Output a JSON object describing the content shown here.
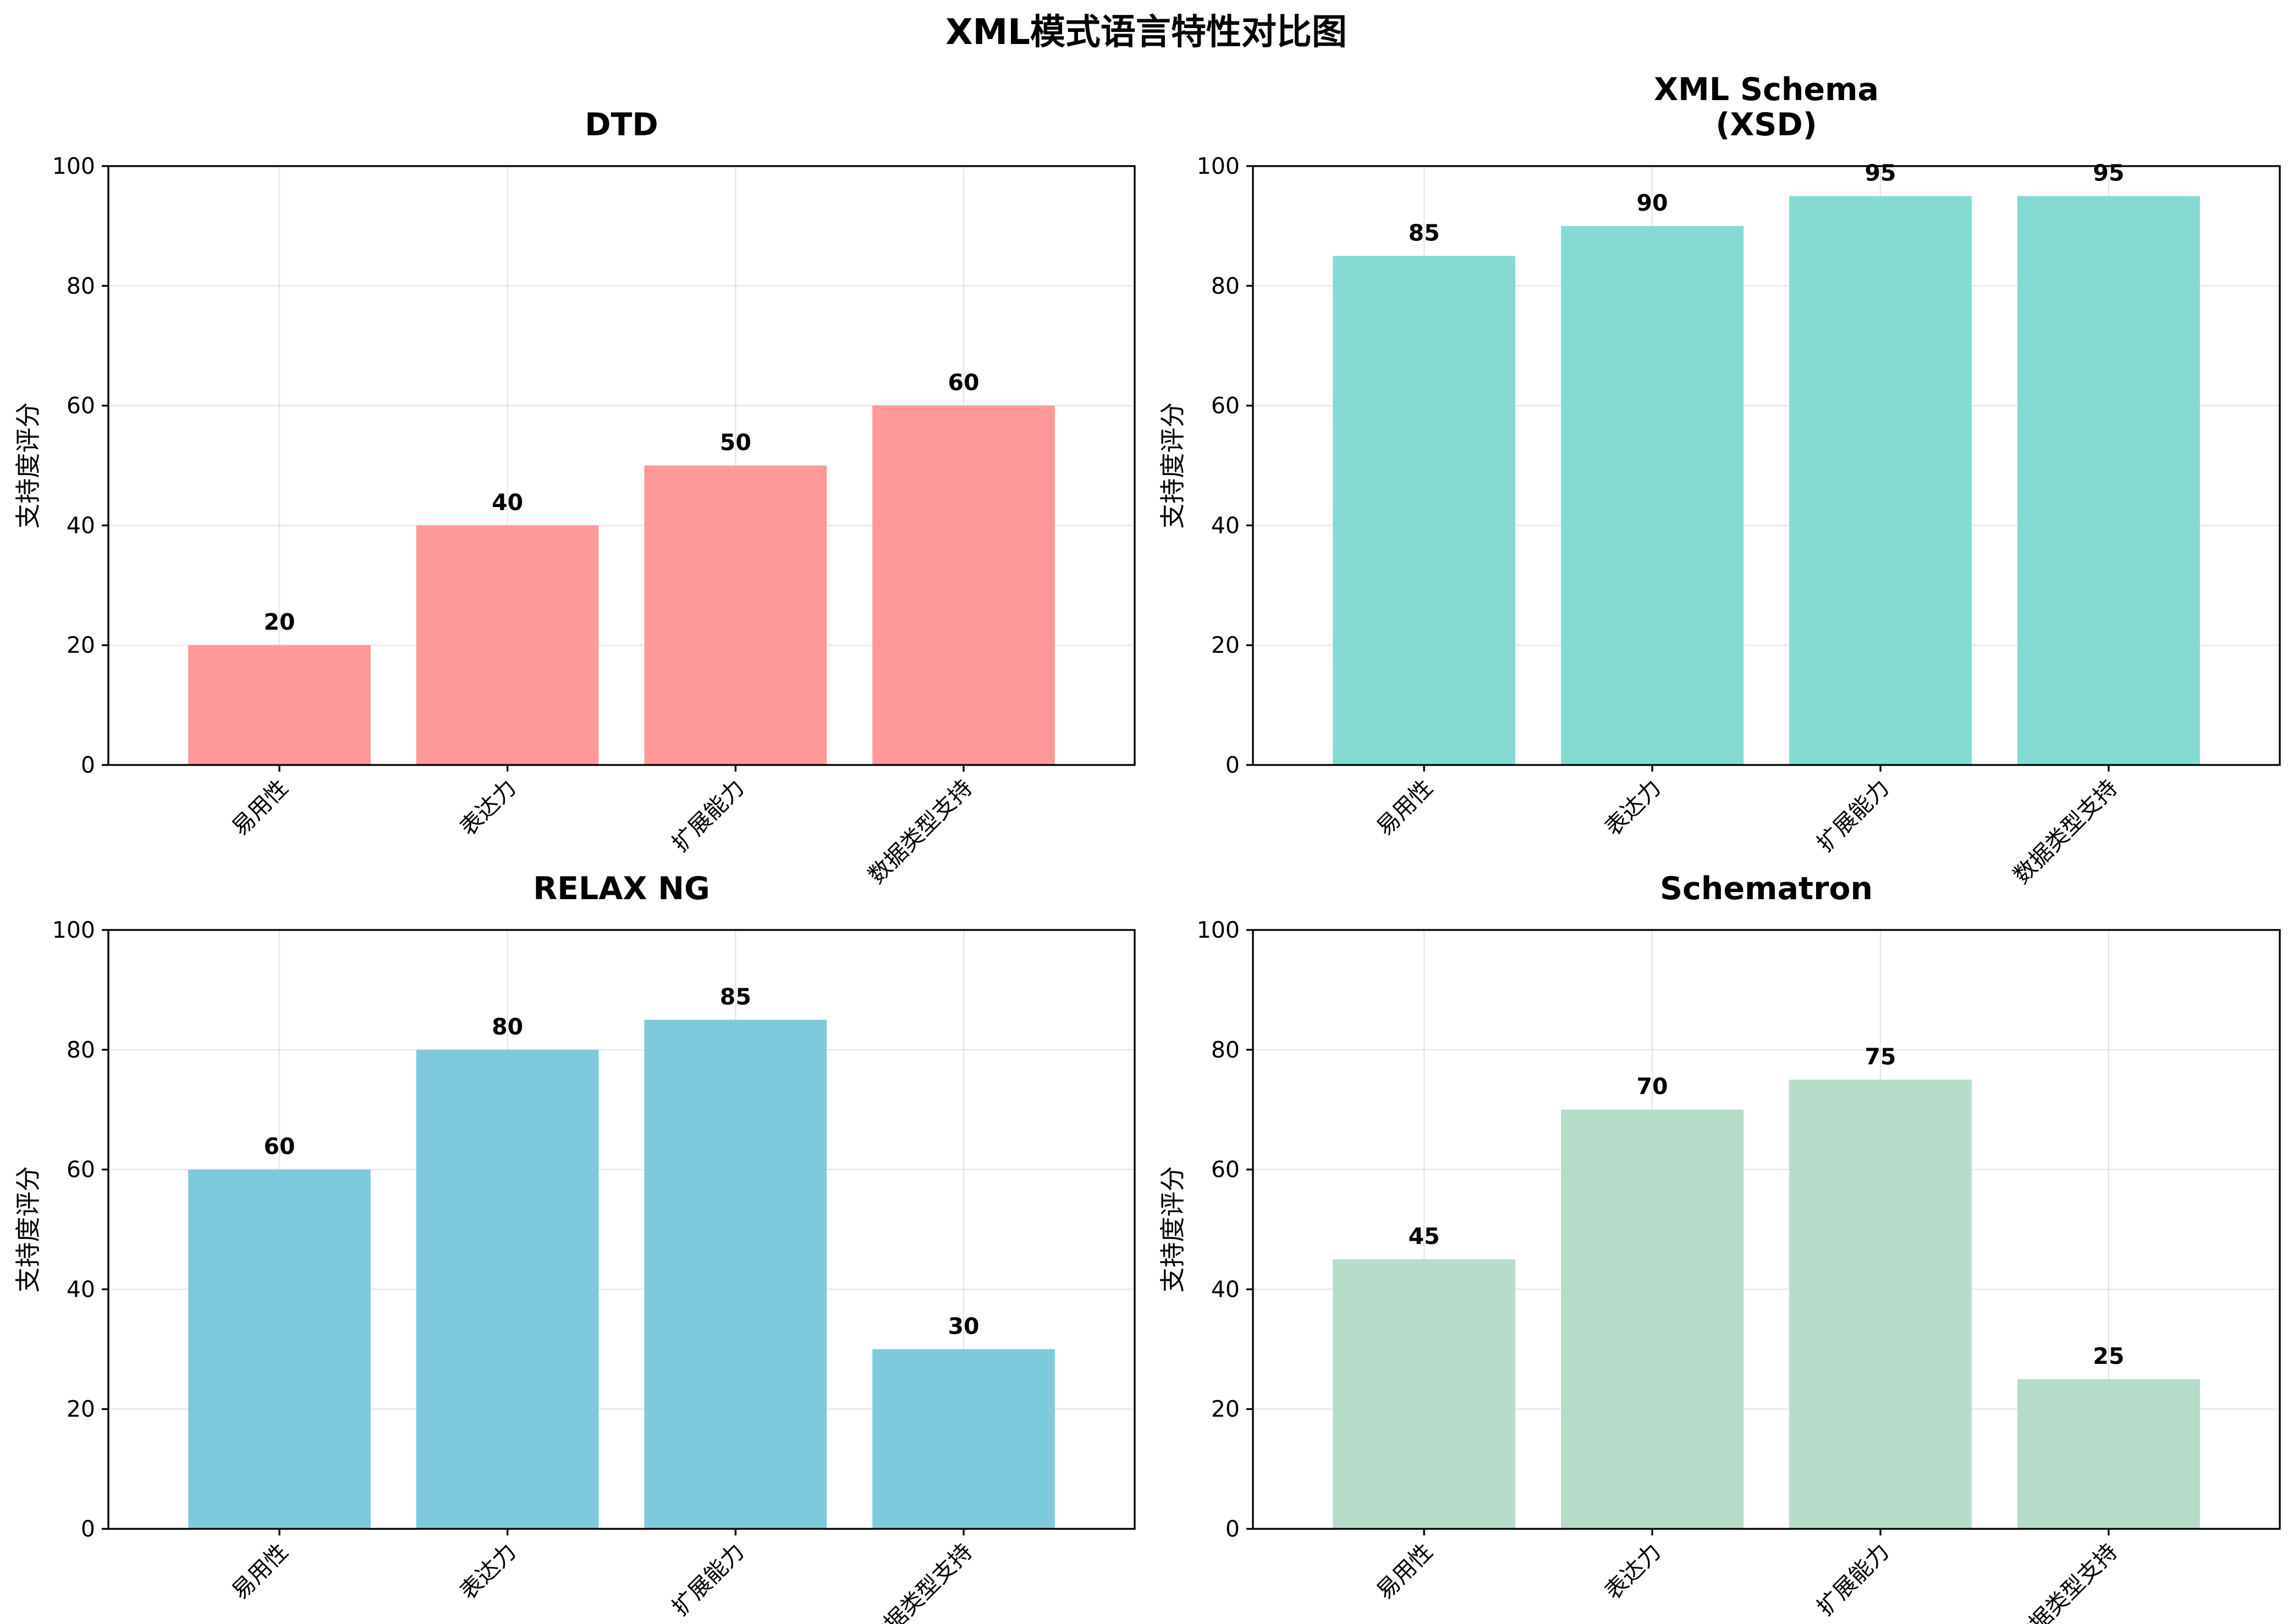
{
  "title": "XML模式语言特性对比图",
  "chart_data": [
    {
      "type": "bar",
      "title": "DTD",
      "ylabel": "支持度评分",
      "categories": [
        "易用性",
        "表达力",
        "扩展能力",
        "数据类型支持"
      ],
      "values": [
        20,
        40,
        50,
        60
      ],
      "ylim": [
        0,
        100
      ],
      "yticks": [
        0,
        20,
        40,
        60,
        80,
        100
      ],
      "color": "#ff9999",
      "grid": true
    },
    {
      "type": "bar",
      "title": "XML Schema\n(XSD)",
      "ylabel": "支持度评分",
      "categories": [
        "易用性",
        "表达力",
        "扩展能力",
        "数据类型支持"
      ],
      "values": [
        85,
        90,
        95,
        95
      ],
      "ylim": [
        0,
        100
      ],
      "yticks": [
        0,
        20,
        40,
        60,
        80,
        100
      ],
      "color": "#85dbd4",
      "grid": true
    },
    {
      "type": "bar",
      "title": "RELAX NG",
      "ylabel": "支持度评分",
      "categories": [
        "易用性",
        "表达力",
        "扩展能力",
        "数据类型支持"
      ],
      "values": [
        60,
        80,
        85,
        30
      ],
      "ylim": [
        0,
        100
      ],
      "yticks": [
        0,
        20,
        40,
        60,
        80,
        100
      ],
      "color": "#7ecadc",
      "grid": true
    },
    {
      "type": "bar",
      "title": "Schematron",
      "ylabel": "支持度评分",
      "categories": [
        "易用性",
        "表达力",
        "扩展能力",
        "数据类型支持"
      ],
      "values": [
        45,
        70,
        75,
        25
      ],
      "ylim": [
        0,
        100
      ],
      "yticks": [
        0,
        20,
        40,
        60,
        80,
        100
      ],
      "color": "#b6dcca",
      "grid": true
    }
  ]
}
